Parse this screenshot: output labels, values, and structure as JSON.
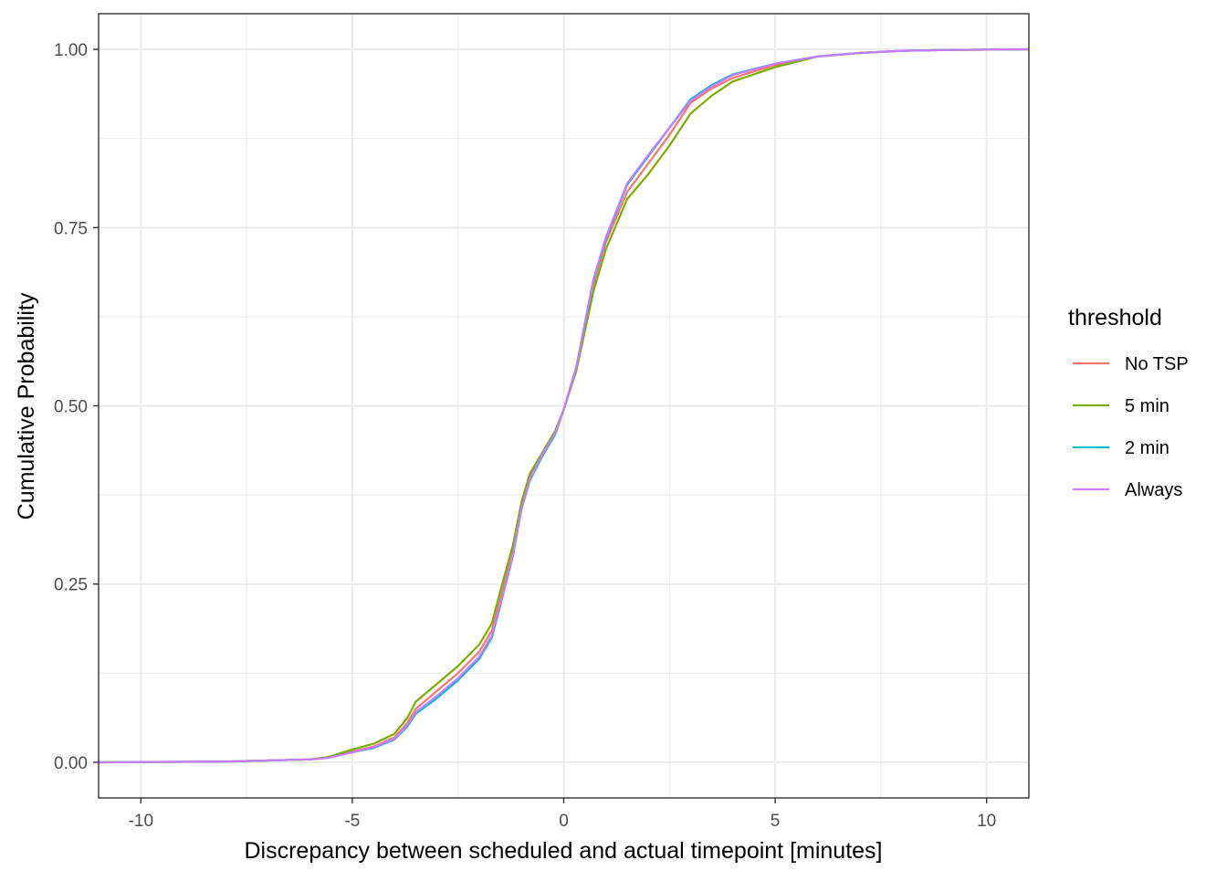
{
  "chart_data": {
    "type": "line",
    "title": "",
    "xlabel": "Discrepancy between scheduled and actual timepoint [minutes]",
    "ylabel": "Cumulative Probability",
    "xlim": [
      -11,
      11
    ],
    "ylim": [
      -0.05,
      1.05
    ],
    "x_ticks": [
      -10,
      -5,
      0,
      5,
      10
    ],
    "x_tick_labels": [
      "-10",
      "-5",
      "0",
      "5",
      "10"
    ],
    "y_ticks": [
      0,
      0.25,
      0.5,
      0.75,
      1
    ],
    "y_tick_labels": [
      "0.00",
      "0.25",
      "0.50",
      "0.75",
      "1.00"
    ],
    "grid": true,
    "legend": {
      "title": "threshold",
      "position": "right"
    },
    "series": [
      {
        "name": "No TSP",
        "color": "#F8766D",
        "points": [
          [
            -11,
            0
          ],
          [
            -8,
            0.001
          ],
          [
            -6,
            0.004
          ],
          [
            -5.6,
            0.007
          ],
          [
            -5,
            0.015
          ],
          [
            -4.5,
            0.022
          ],
          [
            -4,
            0.035
          ],
          [
            -3.7,
            0.055
          ],
          [
            -3.5,
            0.075
          ],
          [
            -3,
            0.1
          ],
          [
            -2.5,
            0.125
          ],
          [
            -2,
            0.155
          ],
          [
            -1.7,
            0.185
          ],
          [
            -1.5,
            0.23
          ],
          [
            -1.2,
            0.3
          ],
          [
            -1,
            0.36
          ],
          [
            -0.8,
            0.4
          ],
          [
            -0.5,
            0.43
          ],
          [
            -0.2,
            0.46
          ],
          [
            0,
            0.495
          ],
          [
            0.3,
            0.55
          ],
          [
            0.5,
            0.61
          ],
          [
            0.7,
            0.67
          ],
          [
            1,
            0.73
          ],
          [
            1.5,
            0.8
          ],
          [
            2,
            0.84
          ],
          [
            2.5,
            0.88
          ],
          [
            3,
            0.925
          ],
          [
            3.5,
            0.945
          ],
          [
            4,
            0.96
          ],
          [
            5,
            0.978
          ],
          [
            6,
            0.99
          ],
          [
            7,
            0.995
          ],
          [
            8,
            0.998
          ],
          [
            9,
            0.999
          ],
          [
            11,
            1
          ]
        ]
      },
      {
        "name": "5 min",
        "color": "#7CAE00",
        "points": [
          [
            -11,
            0
          ],
          [
            -8,
            0.001
          ],
          [
            -6,
            0.004
          ],
          [
            -5.6,
            0.007
          ],
          [
            -5,
            0.018
          ],
          [
            -4.5,
            0.026
          ],
          [
            -4,
            0.04
          ],
          [
            -3.7,
            0.062
          ],
          [
            -3.5,
            0.085
          ],
          [
            -3,
            0.11
          ],
          [
            -2.5,
            0.135
          ],
          [
            -2,
            0.165
          ],
          [
            -1.7,
            0.195
          ],
          [
            -1.5,
            0.24
          ],
          [
            -1.2,
            0.305
          ],
          [
            -1,
            0.365
          ],
          [
            -0.8,
            0.405
          ],
          [
            -0.5,
            0.435
          ],
          [
            -0.2,
            0.465
          ],
          [
            0,
            0.495
          ],
          [
            0.3,
            0.55
          ],
          [
            0.5,
            0.605
          ],
          [
            0.7,
            0.66
          ],
          [
            1,
            0.72
          ],
          [
            1.5,
            0.79
          ],
          [
            2,
            0.825
          ],
          [
            2.5,
            0.865
          ],
          [
            3,
            0.91
          ],
          [
            3.5,
            0.935
          ],
          [
            4,
            0.955
          ],
          [
            5,
            0.975
          ],
          [
            6,
            0.99
          ],
          [
            7,
            0.995
          ],
          [
            8,
            0.998
          ],
          [
            9,
            0.999
          ],
          [
            11,
            1
          ]
        ]
      },
      {
        "name": "2 min",
        "color": "#00BFC4",
        "points": [
          [
            -11,
            0
          ],
          [
            -8,
            0.001
          ],
          [
            -6,
            0.004
          ],
          [
            -5.6,
            0.006
          ],
          [
            -5,
            0.014
          ],
          [
            -4.5,
            0.02
          ],
          [
            -4,
            0.032
          ],
          [
            -3.7,
            0.05
          ],
          [
            -3.5,
            0.068
          ],
          [
            -3,
            0.09
          ],
          [
            -2.5,
            0.115
          ],
          [
            -2,
            0.145
          ],
          [
            -1.7,
            0.175
          ],
          [
            -1.5,
            0.22
          ],
          [
            -1.2,
            0.29
          ],
          [
            -1,
            0.355
          ],
          [
            -0.8,
            0.395
          ],
          [
            -0.5,
            0.43
          ],
          [
            -0.2,
            0.46
          ],
          [
            0,
            0.495
          ],
          [
            0.3,
            0.555
          ],
          [
            0.5,
            0.615
          ],
          [
            0.7,
            0.675
          ],
          [
            1,
            0.735
          ],
          [
            1.5,
            0.81
          ],
          [
            2,
            0.85
          ],
          [
            2.5,
            0.89
          ],
          [
            3,
            0.93
          ],
          [
            3.5,
            0.95
          ],
          [
            4,
            0.965
          ],
          [
            5,
            0.98
          ],
          [
            6,
            0.99
          ],
          [
            7,
            0.995
          ],
          [
            8,
            0.998
          ],
          [
            9,
            0.999
          ],
          [
            11,
            1
          ]
        ]
      },
      {
        "name": "Always",
        "color": "#C77CFF",
        "points": [
          [
            -11,
            0
          ],
          [
            -8,
            0.001
          ],
          [
            -6,
            0.004
          ],
          [
            -5.6,
            0.006
          ],
          [
            -5,
            0.014
          ],
          [
            -4.5,
            0.021
          ],
          [
            -4,
            0.033
          ],
          [
            -3.7,
            0.052
          ],
          [
            -3.5,
            0.07
          ],
          [
            -3,
            0.093
          ],
          [
            -2.5,
            0.118
          ],
          [
            -2,
            0.148
          ],
          [
            -1.7,
            0.178
          ],
          [
            -1.5,
            0.222
          ],
          [
            -1.2,
            0.292
          ],
          [
            -1,
            0.356
          ],
          [
            -0.8,
            0.397
          ],
          [
            -0.5,
            0.432
          ],
          [
            -0.2,
            0.462
          ],
          [
            0,
            0.495
          ],
          [
            0.3,
            0.555
          ],
          [
            0.5,
            0.617
          ],
          [
            0.7,
            0.677
          ],
          [
            1,
            0.737
          ],
          [
            1.5,
            0.812
          ],
          [
            2,
            0.852
          ],
          [
            2.5,
            0.89
          ],
          [
            3,
            0.928
          ],
          [
            3.5,
            0.948
          ],
          [
            4,
            0.964
          ],
          [
            5,
            0.98
          ],
          [
            6,
            0.99
          ],
          [
            7,
            0.995
          ],
          [
            8,
            0.998
          ],
          [
            9,
            0.999
          ],
          [
            11,
            1
          ]
        ]
      }
    ]
  }
}
